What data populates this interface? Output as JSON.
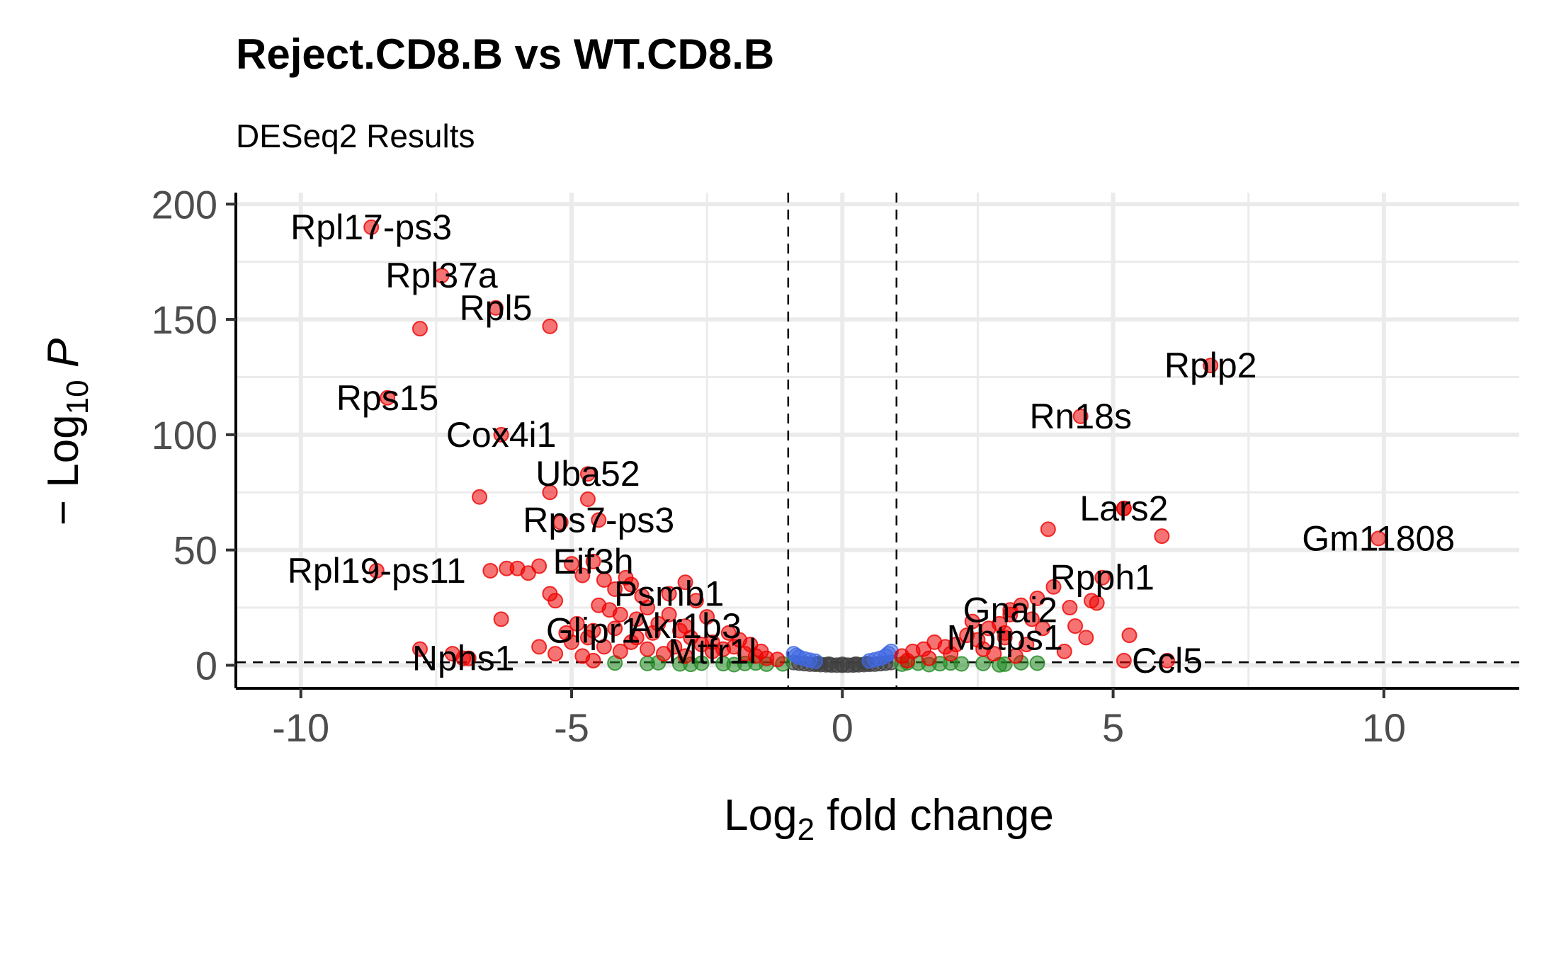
{
  "title": "Reject.CD8.B vs WT.CD8.B",
  "subtitle": "DESeq2 Results",
  "chart_data": {
    "type": "scatter",
    "title": "Reject.CD8.B vs WT.CD8.B",
    "subtitle": "DESeq2 Results",
    "xlabel": "Log2 fold change",
    "ylabel": "-Log10 P",
    "xlim": [
      -11.2,
      12.5
    ],
    "ylim": [
      -10,
      205
    ],
    "xticks": [
      -10,
      -5,
      0,
      5,
      10
    ],
    "yticks": [
      0,
      50,
      100,
      150,
      200
    ],
    "grid": true,
    "legend": "none",
    "fc_cutoff": [
      -1,
      1
    ],
    "p_cutoff_neglog10": 1.3,
    "colors": {
      "significant": "#ee0000",
      "fold_change_only": "#228b22",
      "p_value_only": "#4169e1",
      "not_significant": "#404040",
      "grid": "#ebebeb"
    },
    "labeled_points": [
      {
        "gene": "Rpl17-ps3",
        "x": -8.7,
        "y": 190
      },
      {
        "gene": "Rpl37a",
        "x": -7.4,
        "y": 169
      },
      {
        "gene": "Rpl5",
        "x": -6.4,
        "y": 155
      },
      {
        "gene": "Rps15",
        "x": -8.4,
        "y": 116
      },
      {
        "gene": "Cox4i1",
        "x": -6.3,
        "y": 100
      },
      {
        "gene": "Uba52",
        "x": -4.7,
        "y": 83
      },
      {
        "gene": "Rps7-ps3",
        "x": -4.5,
        "y": 63
      },
      {
        "gene": "Eif3h",
        "x": -4.6,
        "y": 45
      },
      {
        "gene": "Rpl19-ps11",
        "x": -8.6,
        "y": 41
      },
      {
        "gene": "Psmb1",
        "x": -3.2,
        "y": 31
      },
      {
        "gene": "Glipr1",
        "x": -4.6,
        "y": 15
      },
      {
        "gene": "Akr1b3",
        "x": -2.9,
        "y": 17
      },
      {
        "gene": "Mtfr1l",
        "x": -2.4,
        "y": 6
      },
      {
        "gene": "Nphs1",
        "x": -7.0,
        "y": 3
      },
      {
        "gene": "Rplp2",
        "x": 6.8,
        "y": 130
      },
      {
        "gene": "Rn18s",
        "x": 4.4,
        "y": 108
      },
      {
        "gene": "Lars2",
        "x": 5.2,
        "y": 68
      },
      {
        "gene": "Gm11808",
        "x": 9.9,
        "y": 55
      },
      {
        "gene": "Rpph1",
        "x": 4.8,
        "y": 38
      },
      {
        "gene": "Gnai2",
        "x": 3.1,
        "y": 24
      },
      {
        "gene": "Mbtps1",
        "x": 3.0,
        "y": 12
      },
      {
        "gene": "Ccl5",
        "x": 6.0,
        "y": 2
      }
    ],
    "other_points": [
      {
        "x": -7.8,
        "y": 146
      },
      {
        "x": -5.4,
        "y": 147
      },
      {
        "x": -6.7,
        "y": 73
      },
      {
        "x": -5.4,
        "y": 75
      },
      {
        "x": -5.2,
        "y": 62
      },
      {
        "x": -4.7,
        "y": 72
      },
      {
        "x": -6.5,
        "y": 41
      },
      {
        "x": -6.2,
        "y": 42
      },
      {
        "x": -6.0,
        "y": 42
      },
      {
        "x": -5.8,
        "y": 40
      },
      {
        "x": -5.6,
        "y": 43
      },
      {
        "x": -5.0,
        "y": 44
      },
      {
        "x": -4.8,
        "y": 39
      },
      {
        "x": -5.4,
        "y": 31
      },
      {
        "x": -5.3,
        "y": 28
      },
      {
        "x": -6.3,
        "y": 20
      },
      {
        "x": -5.6,
        "y": 8
      },
      {
        "x": -5.0,
        "y": 10
      },
      {
        "x": -7.8,
        "y": 7
      },
      {
        "x": -7.2,
        "y": 5
      },
      {
        "x": -6.9,
        "y": 3
      },
      {
        "x": -4.4,
        "y": 37
      },
      {
        "x": -4.2,
        "y": 33
      },
      {
        "x": -4.0,
        "y": 38
      },
      {
        "x": -3.9,
        "y": 35
      },
      {
        "x": -3.7,
        "y": 30
      },
      {
        "x": -4.5,
        "y": 26
      },
      {
        "x": -4.3,
        "y": 24
      },
      {
        "x": -4.1,
        "y": 22
      },
      {
        "x": -3.8,
        "y": 20
      },
      {
        "x": -3.6,
        "y": 25
      },
      {
        "x": -3.4,
        "y": 18
      },
      {
        "x": -3.2,
        "y": 22
      },
      {
        "x": -3.0,
        "y": 15
      },
      {
        "x": -2.8,
        "y": 12
      },
      {
        "x": -2.6,
        "y": 9
      },
      {
        "x": -2.4,
        "y": 10
      },
      {
        "x": -2.2,
        "y": 7
      },
      {
        "x": -2.0,
        "y": 8
      },
      {
        "x": -1.8,
        "y": 5
      },
      {
        "x": -1.6,
        "y": 4
      },
      {
        "x": -1.4,
        "y": 3
      },
      {
        "x": -1.2,
        "y": 2.5
      },
      {
        "x": -4.9,
        "y": 18
      },
      {
        "x": -5.1,
        "y": 14
      },
      {
        "x": -4.7,
        "y": 12
      },
      {
        "x": -4.4,
        "y": 8
      },
      {
        "x": -4.1,
        "y": 6
      },
      {
        "x": -3.9,
        "y": 10
      },
      {
        "x": -3.6,
        "y": 7
      },
      {
        "x": -3.3,
        "y": 5
      },
      {
        "x": -3.1,
        "y": 8
      },
      {
        "x": -2.9,
        "y": 4
      },
      {
        "x": -5.3,
        "y": 5
      },
      {
        "x": -4.8,
        "y": 4
      },
      {
        "x": -4.6,
        "y": 2
      },
      {
        "x": -2.9,
        "y": 36
      },
      {
        "x": -2.7,
        "y": 28
      },
      {
        "x": -2.5,
        "y": 21
      },
      {
        "x": -3.5,
        "y": 14
      },
      {
        "x": -4.2,
        "y": 16
      },
      {
        "x": -3.8,
        "y": 12
      },
      {
        "x": -2.1,
        "y": 14
      },
      {
        "x": -1.9,
        "y": 11
      },
      {
        "x": -1.7,
        "y": 9
      },
      {
        "x": -1.5,
        "y": 6
      },
      {
        "x": 3.8,
        "y": 59
      },
      {
        "x": 5.2,
        "y": 68
      },
      {
        "x": 5.9,
        "y": 56
      },
      {
        "x": 3.9,
        "y": 34
      },
      {
        "x": 4.6,
        "y": 28
      },
      {
        "x": 4.7,
        "y": 27
      },
      {
        "x": 4.2,
        "y": 25
      },
      {
        "x": 3.6,
        "y": 29
      },
      {
        "x": 4.3,
        "y": 17
      },
      {
        "x": 5.3,
        "y": 13
      },
      {
        "x": 4.1,
        "y": 6
      },
      {
        "x": 3.3,
        "y": 26
      },
      {
        "x": 3.1,
        "y": 22
      },
      {
        "x": 2.9,
        "y": 18
      },
      {
        "x": 3.5,
        "y": 20
      },
      {
        "x": 3.7,
        "y": 16
      },
      {
        "x": 3.0,
        "y": 14
      },
      {
        "x": 2.7,
        "y": 16
      },
      {
        "x": 2.5,
        "y": 11
      },
      {
        "x": 2.3,
        "y": 13
      },
      {
        "x": 2.1,
        "y": 9
      },
      {
        "x": 1.9,
        "y": 8
      },
      {
        "x": 1.7,
        "y": 10
      },
      {
        "x": 1.5,
        "y": 7
      },
      {
        "x": 1.3,
        "y": 6
      },
      {
        "x": 1.1,
        "y": 4
      },
      {
        "x": 2.6,
        "y": 7
      },
      {
        "x": 2.8,
        "y": 5
      },
      {
        "x": 3.4,
        "y": 9
      },
      {
        "x": 3.2,
        "y": 4
      },
      {
        "x": 2.0,
        "y": 5
      },
      {
        "x": 1.6,
        "y": 3
      },
      {
        "x": 1.2,
        "y": 2
      },
      {
        "x": 5.2,
        "y": 2
      },
      {
        "x": 4.5,
        "y": 12
      },
      {
        "x": 2.4,
        "y": 19
      }
    ],
    "fc_only_points": [
      {
        "x": -4.2,
        "y": 1
      },
      {
        "x": -3.6,
        "y": 0.8
      },
      {
        "x": -3.0,
        "y": 0.6
      },
      {
        "x": -2.6,
        "y": 0.9
      },
      {
        "x": -2.2,
        "y": 0.7
      },
      {
        "x": -1.8,
        "y": 0.8
      },
      {
        "x": -1.4,
        "y": 0.5
      },
      {
        "x": -1.1,
        "y": 0.6
      },
      {
        "x": -3.4,
        "y": 1.1
      },
      {
        "x": -2.8,
        "y": 0.4
      },
      {
        "x": -2.0,
        "y": 0.3
      },
      {
        "x": -1.6,
        "y": 1.0
      },
      {
        "x": 1.1,
        "y": 0.5
      },
      {
        "x": 1.4,
        "y": 0.9
      },
      {
        "x": 1.8,
        "y": 0.7
      },
      {
        "x": 2.2,
        "y": 0.6
      },
      {
        "x": 2.6,
        "y": 0.8
      },
      {
        "x": 3.0,
        "y": 0.5
      },
      {
        "x": 3.6,
        "y": 0.9
      },
      {
        "x": 1.6,
        "y": 0.3
      },
      {
        "x": 2.0,
        "y": 1.0
      },
      {
        "x": 2.9,
        "y": 0.2
      },
      {
        "x": 3.3,
        "y": 1.1
      },
      {
        "x": 1.2,
        "y": 1.1
      }
    ],
    "p_only_points": [
      {
        "x": -0.9,
        "y": 5
      },
      {
        "x": -0.8,
        "y": 3.5
      },
      {
        "x": -0.7,
        "y": 2.8
      },
      {
        "x": -0.6,
        "y": 2.2
      },
      {
        "x": -0.5,
        "y": 1.8
      },
      {
        "x": -0.85,
        "y": 4.2
      },
      {
        "x": 0.9,
        "y": 6
      },
      {
        "x": 0.8,
        "y": 4
      },
      {
        "x": 0.7,
        "y": 3
      },
      {
        "x": 0.6,
        "y": 2.4
      },
      {
        "x": 0.5,
        "y": 1.9
      },
      {
        "x": 0.85,
        "y": 5
      }
    ],
    "ns_points": [
      {
        "x": -0.9,
        "y": 1.2
      },
      {
        "x": -0.8,
        "y": 0.9
      },
      {
        "x": -0.7,
        "y": 0.7
      },
      {
        "x": -0.6,
        "y": 0.5
      },
      {
        "x": -0.5,
        "y": 0.4
      },
      {
        "x": -0.4,
        "y": 0.3
      },
      {
        "x": -0.3,
        "y": 0.2
      },
      {
        "x": -0.2,
        "y": 0.1
      },
      {
        "x": -0.1,
        "y": 0.05
      },
      {
        "x": 0.0,
        "y": 0.0
      },
      {
        "x": 0.1,
        "y": 0.05
      },
      {
        "x": 0.2,
        "y": 0.1
      },
      {
        "x": 0.3,
        "y": 0.2
      },
      {
        "x": 0.4,
        "y": 0.3
      },
      {
        "x": 0.5,
        "y": 0.4
      },
      {
        "x": 0.6,
        "y": 0.5
      },
      {
        "x": 0.7,
        "y": 0.7
      },
      {
        "x": 0.8,
        "y": 0.9
      },
      {
        "x": 0.9,
        "y": 1.2
      },
      {
        "x": -0.45,
        "y": 0.8
      },
      {
        "x": 0.45,
        "y": 0.8
      },
      {
        "x": -0.25,
        "y": 0.5
      },
      {
        "x": 0.25,
        "y": 0.5
      },
      {
        "x": 0.0,
        "y": 0.4
      }
    ]
  }
}
